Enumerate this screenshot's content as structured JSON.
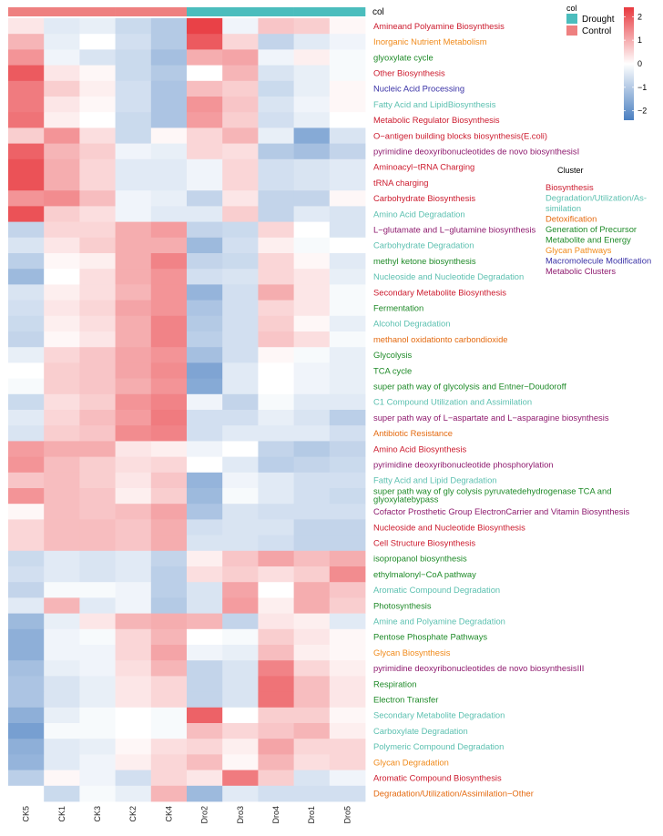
{
  "chart_data": {
    "type": "heatmap",
    "columns": [
      "CK5",
      "CK1",
      "CK3",
      "CK2",
      "CK4",
      "Dro2",
      "Dro3",
      "Dro4",
      "Dro1",
      "Dro5"
    ],
    "column_groups": [
      "Control",
      "Control",
      "Control",
      "Control",
      "Control",
      "Drought",
      "Drought",
      "Drought",
      "Drought",
      "Drought"
    ],
    "annotation_title": "col",
    "group_legend": [
      {
        "label": "Drought",
        "color": "#4bbdbd"
      },
      {
        "label": "Control",
        "color": "#ee8080"
      }
    ],
    "color_scale": {
      "low": "#4a7fc1",
      "mid": "#ffffff",
      "high": "#e8393f",
      "ticks": [
        2,
        1,
        0,
        -1,
        -2
      ],
      "range": [
        -2.4,
        2.4
      ]
    },
    "cluster_legend_title": "Cluster",
    "clusters": [
      {
        "name": "Biosynthesis",
        "color": "#cc1b2e"
      },
      {
        "name": "Degradation/Utilization/As-\nsimilation",
        "color": "#5cc0b0"
      },
      {
        "name": "Detoxification",
        "color": "#e46a10"
      },
      {
        "name": "Generation of Precursor\nMetabolite and Energy",
        "color": "#1e8a28"
      },
      {
        "name": "Glycan Pathways",
        "color": "#f08a1a"
      },
      {
        "name": "Macromolecule Modification",
        "color": "#3a32a6"
      },
      {
        "name": "Metabolic Clusters",
        "color": "#8e1a6e"
      }
    ],
    "rows": [
      {
        "label": "Amineand Polyamine Biosynthesis",
        "cluster": "Biosynthesis",
        "values": [
          0.3,
          -0.4,
          -0.3,
          -0.7,
          -1.0,
          2.3,
          -0.2,
          0.7,
          0.6,
          0.1
        ]
      },
      {
        "label": "Inorganic Nutrient Metabolism",
        "cluster": "Glycan Pathways",
        "values": [
          0.9,
          -0.3,
          0.0,
          -0.6,
          -1.0,
          2.0,
          0.5,
          -0.8,
          -0.4,
          -0.2
        ]
      },
      {
        "label": "glyoxylate cycle",
        "cluster": "Generation of Precursor Metabolite and Energy",
        "values": [
          1.3,
          -0.2,
          -0.5,
          -0.7,
          -1.2,
          1.0,
          1.1,
          -0.2,
          0.2,
          -0.1
        ]
      },
      {
        "label": "Other Biosynthesis",
        "cluster": "Biosynthesis",
        "values": [
          2.0,
          0.3,
          0.1,
          -0.7,
          -1.0,
          0.0,
          0.9,
          -0.5,
          -0.3,
          -0.1
        ]
      },
      {
        "label": "Nucleic Acid Processing",
        "cluster": "Macromolecule Modification",
        "values": [
          1.6,
          0.6,
          0.2,
          -0.6,
          -1.1,
          0.8,
          0.6,
          -0.7,
          -0.3,
          0.1
        ]
      },
      {
        "label": "Fatty Acid and LipidBiosynthesis",
        "cluster": "Degradation/Utilization/Assimilation",
        "values": [
          1.6,
          0.3,
          0.1,
          -0.6,
          -1.1,
          1.3,
          0.7,
          -0.5,
          -0.2,
          0.1
        ]
      },
      {
        "label": "Metabolic Regulator Biosynthesis",
        "cluster": "Biosynthesis",
        "values": [
          1.7,
          0.2,
          0.0,
          -0.7,
          -1.1,
          1.2,
          0.6,
          -0.6,
          -0.3,
          0.0
        ]
      },
      {
        "label": "O−antigen building blocks biosynthesis(E.coli)",
        "cluster": "Biosynthesis",
        "values": [
          0.6,
          1.3,
          0.4,
          -0.7,
          0.1,
          0.5,
          0.9,
          -0.3,
          -1.6,
          -0.5
        ]
      },
      {
        "label": "pyrimidine deoxyribonucleotides de novo biosynthesisI",
        "cluster": "Metabolic Clusters",
        "values": [
          1.9,
          0.9,
          0.6,
          -0.2,
          -0.3,
          0.5,
          0.4,
          -1.0,
          -1.2,
          -0.8
        ]
      },
      {
        "label": "Aminoacyl−tRNA Charging",
        "cluster": "Biosynthesis",
        "values": [
          2.1,
          1.0,
          0.5,
          -0.4,
          -0.4,
          -0.2,
          0.5,
          -0.6,
          -0.5,
          -0.4
        ]
      },
      {
        "label": "tRNA charging",
        "cluster": "Biosynthesis",
        "values": [
          2.1,
          1.0,
          0.5,
          -0.4,
          -0.4,
          -0.2,
          0.5,
          -0.6,
          -0.5,
          -0.4
        ]
      },
      {
        "label": "Carbohydrate Biosynthesis",
        "cluster": "Biosynthesis",
        "values": [
          1.3,
          1.4,
          0.8,
          -0.2,
          -0.3,
          -0.8,
          0.3,
          -0.8,
          -0.8,
          0.1
        ]
      },
      {
        "label": "Amino Acid Degradation",
        "cluster": "Degradation/Utilization/Assimilation",
        "values": [
          2.1,
          0.6,
          0.4,
          -0.2,
          -0.4,
          -0.4,
          0.6,
          -0.8,
          -0.4,
          -0.5
        ]
      },
      {
        "label": "L−glutamate and L−glutamine biosynthesis",
        "cluster": "Metabolic Clusters",
        "values": [
          -0.8,
          0.5,
          0.5,
          1.0,
          1.2,
          -0.8,
          -0.7,
          0.5,
          0.0,
          -0.5
        ]
      },
      {
        "label": "Carbohydrate Degradation",
        "cluster": "Degradation/Utilization/Assimilation",
        "values": [
          -0.5,
          0.3,
          0.6,
          1.0,
          1.0,
          -1.3,
          -0.6,
          0.2,
          -0.1,
          0.0
        ]
      },
      {
        "label": "methyl ketone biosynthesis",
        "cluster": "Generation of Precursor Metabolite and Energy",
        "values": [
          -0.9,
          0.1,
          0.2,
          1.0,
          1.5,
          -0.8,
          -0.7,
          0.5,
          0.1,
          -0.4
        ]
      },
      {
        "label": "Nucleoside and Nucleotide Degradation",
        "cluster": "Degradation/Utilization/Assimilation",
        "values": [
          -1.3,
          0.0,
          0.4,
          1.0,
          1.3,
          -0.6,
          -0.5,
          0.5,
          0.3,
          -0.3
        ]
      },
      {
        "label": "Secondary Metabolite Biosynthesis",
        "cluster": "Biosynthesis",
        "values": [
          -0.5,
          0.2,
          0.4,
          0.9,
          1.3,
          -1.4,
          -0.6,
          1.0,
          0.3,
          -0.1
        ]
      },
      {
        "label": "Fermentation",
        "cluster": "Generation of Precursor Metabolite and Energy",
        "values": [
          -0.6,
          0.3,
          0.5,
          1.1,
          1.3,
          -1.1,
          -0.6,
          0.5,
          0.3,
          -0.1
        ]
      },
      {
        "label": "Alcohol Degradation",
        "cluster": "Degradation/Utilization/Assimilation",
        "values": [
          -0.7,
          0.2,
          0.4,
          1.0,
          1.5,
          -1.0,
          -0.6,
          0.6,
          0.1,
          -0.3
        ]
      },
      {
        "label": "methanol oxidationto carbondioxide",
        "cluster": "Detoxification",
        "values": [
          -0.8,
          0.1,
          0.3,
          1.0,
          1.5,
          -0.9,
          -0.6,
          0.7,
          0.4,
          -0.1
        ]
      },
      {
        "label": "Glycolysis",
        "cluster": "Generation of Precursor Metabolite and Energy",
        "values": [
          -0.3,
          0.5,
          0.7,
          1.1,
          1.3,
          -1.2,
          -0.6,
          0.1,
          -0.1,
          -0.3
        ]
      },
      {
        "label": "TCA cycle",
        "cluster": "Generation of Precursor Metabolite and Energy",
        "values": [
          0.0,
          0.6,
          0.7,
          1.1,
          1.4,
          -1.7,
          -0.4,
          0.0,
          -0.2,
          -0.3
        ]
      },
      {
        "label": "super path way of glycolysis and Entner−Doudoroff",
        "cluster": "Generation of Precursor Metabolite and Energy",
        "values": [
          -0.1,
          0.6,
          0.7,
          1.0,
          1.3,
          -1.6,
          -0.4,
          0.0,
          -0.2,
          -0.3
        ]
      },
      {
        "label": "C1 Compound Utilization and Assimilation",
        "cluster": "Degradation/Utilization/Assimilation",
        "values": [
          -0.7,
          0.4,
          0.6,
          1.3,
          1.5,
          -0.2,
          -0.8,
          -0.1,
          -0.4,
          -0.4
        ]
      },
      {
        "label": "super path way of L−aspartate and L−asparagine biosynthesis",
        "cluster": "Metabolic Clusters",
        "values": [
          -0.4,
          0.5,
          0.8,
          1.2,
          1.6,
          -0.6,
          -0.6,
          -0.3,
          -0.5,
          -0.9
        ]
      },
      {
        "label": "Antibiotic Resistance",
        "cluster": "Detoxification",
        "values": [
          -0.5,
          0.6,
          0.7,
          1.4,
          1.5,
          -0.6,
          -0.4,
          -0.4,
          -0.4,
          -0.6
        ]
      },
      {
        "label": "Amino Acid Biosynthesis",
        "cluster": "Biosynthesis",
        "values": [
          1.2,
          1.0,
          1.0,
          0.3,
          0.2,
          -0.2,
          0.0,
          -0.8,
          -1.0,
          -0.8
        ]
      },
      {
        "label": "pyrimidine deoxyribonucleotide phosphorylation",
        "cluster": "Metabolic Clusters",
        "values": [
          1.3,
          0.8,
          0.6,
          0.4,
          0.5,
          0.0,
          -0.4,
          -0.9,
          -0.8,
          -0.7
        ]
      },
      {
        "label": "Fatty Acid and Lipid Degradation",
        "cluster": "Degradation/Utilization/Assimilation",
        "values": [
          0.7,
          0.8,
          0.6,
          0.3,
          0.7,
          -1.4,
          -0.2,
          -0.4,
          -0.6,
          -0.6
        ]
      },
      {
        "label": "super path way of gly colysis pyruvatedehydrogenase TCA and glyoxylatebypass",
        "cluster": "Generation of Precursor Metabolite and Energy",
        "values": [
          1.3,
          0.8,
          0.7,
          0.2,
          0.6,
          -1.3,
          -0.1,
          -0.4,
          -0.6,
          -0.7
        ]
      },
      {
        "label": "Cofactor Prosthetic Group ElectronCarrier and Vitamin Biosynthesis",
        "cluster": "Metabolic Clusters",
        "values": [
          0.1,
          0.8,
          0.7,
          0.8,
          1.1,
          -1.1,
          -0.5,
          -0.6,
          -0.6,
          -0.6
        ]
      },
      {
        "label": "Nucleoside and Nucleotide Biosynthesis",
        "cluster": "Biosynthesis",
        "values": [
          0.5,
          0.8,
          0.8,
          0.7,
          1.0,
          -0.6,
          -0.5,
          -0.5,
          -0.8,
          -0.8
        ]
      },
      {
        "label": "Cell Structure Biosynthesis",
        "cluster": "Biosynthesis",
        "values": [
          0.5,
          0.8,
          0.8,
          0.7,
          1.0,
          -0.5,
          -0.5,
          -0.6,
          -0.8,
          -0.8
        ]
      },
      {
        "label": "isopropanol biosynthesis",
        "cluster": "Generation of Precursor Metabolite and Energy",
        "values": [
          -0.7,
          -0.4,
          -0.5,
          -0.4,
          -0.8,
          0.2,
          0.7,
          1.1,
          0.8,
          1.0
        ]
      },
      {
        "label": "ethylmalonyl−CoA pathway",
        "cluster": "Generation of Precursor Metabolite and Energy",
        "values": [
          -0.6,
          -0.4,
          -0.5,
          -0.4,
          -0.9,
          0.4,
          0.6,
          0.4,
          0.6,
          1.4
        ]
      },
      {
        "label": "Aromatic Compound Degradation",
        "cluster": "Degradation/Utilization/Assimilation",
        "values": [
          -0.8,
          -0.1,
          -0.1,
          -0.2,
          -0.9,
          -0.5,
          1.1,
          0.0,
          1.0,
          0.7
        ]
      },
      {
        "label": "Photosynthesis",
        "cluster": "Generation of Precursor Metabolite and Energy",
        "values": [
          -0.4,
          0.9,
          -0.4,
          -0.2,
          -1.0,
          -0.5,
          1.2,
          0.2,
          1.0,
          0.6
        ]
      },
      {
        "label": "Amine and Polyamine Degradation",
        "cluster": "Degradation/Utilization/Assimilation",
        "values": [
          -1.3,
          -0.3,
          0.3,
          0.9,
          1.0,
          0.9,
          -0.8,
          0.3,
          0.2,
          -0.4
        ]
      },
      {
        "label": "Pentose Phosphate Pathways",
        "cluster": "Generation of Precursor Metabolite and Energy",
        "values": [
          -1.5,
          -0.2,
          -0.1,
          0.5,
          0.9,
          0.0,
          -0.1,
          0.6,
          0.3,
          0.1
        ]
      },
      {
        "label": "Glycan Biosynthesis",
        "cluster": "Glycan Pathways",
        "values": [
          -1.5,
          -0.2,
          -0.2,
          0.5,
          1.1,
          -0.2,
          -0.3,
          0.8,
          0.2,
          0.1
        ]
      },
      {
        "label": "pyrimidine deoxyribonucleotides de novo biosynthesisIII",
        "cluster": "Metabolic Clusters",
        "values": [
          -1.2,
          -0.3,
          -0.2,
          0.4,
          0.9,
          -0.8,
          -0.5,
          1.5,
          0.5,
          0.2
        ]
      },
      {
        "label": "Respiration",
        "cluster": "Generation of Precursor Metabolite and Energy",
        "values": [
          -1.1,
          -0.5,
          -0.3,
          0.3,
          0.5,
          -0.8,
          -0.5,
          1.7,
          0.8,
          0.3
        ]
      },
      {
        "label": "Electron Transfer",
        "cluster": "Generation of Precursor Metabolite and Energy",
        "values": [
          -1.1,
          -0.5,
          -0.3,
          0.3,
          0.5,
          -0.8,
          -0.5,
          1.7,
          0.8,
          0.3
        ]
      },
      {
        "label": "Secondary Metabolite Degradation",
        "cluster": "Degradation/Utilization/Assimilation",
        "values": [
          -1.5,
          -0.3,
          -0.1,
          0.0,
          -0.1,
          1.9,
          0.0,
          0.6,
          0.6,
          0.1
        ]
      },
      {
        "label": "Carboxylate Degradation",
        "cluster": "Degradation/Utilization/Assimilation",
        "values": [
          -1.8,
          -0.1,
          -0.1,
          0.0,
          -0.1,
          0.8,
          0.5,
          0.7,
          0.9,
          0.2
        ]
      },
      {
        "label": "Polymeric Compound Degradation",
        "cluster": "Degradation/Utilization/Assimilation",
        "values": [
          -1.5,
          -0.4,
          -0.3,
          0.1,
          0.4,
          0.5,
          0.2,
          1.1,
          0.5,
          0.5
        ]
      },
      {
        "label": "Glycan Degradation",
        "cluster": "Glycan Pathways",
        "values": [
          -1.4,
          -0.4,
          -0.2,
          0.2,
          0.5,
          0.8,
          0.1,
          0.9,
          0.4,
          0.5
        ]
      },
      {
        "label": "Aromatic Compound Biosynthesis",
        "cluster": "Biosynthesis",
        "values": [
          -0.9,
          0.1,
          -0.2,
          -0.6,
          0.5,
          0.3,
          1.6,
          0.6,
          -0.5,
          -0.2
        ]
      },
      {
        "label": "Degradation/Utilization/Assimilation−Other",
        "cluster": "Detoxification",
        "values": [
          0.0,
          -0.7,
          -0.1,
          -0.3,
          0.9,
          -1.3,
          -0.4,
          -0.6,
          -0.6,
          -0.6
        ]
      }
    ]
  }
}
